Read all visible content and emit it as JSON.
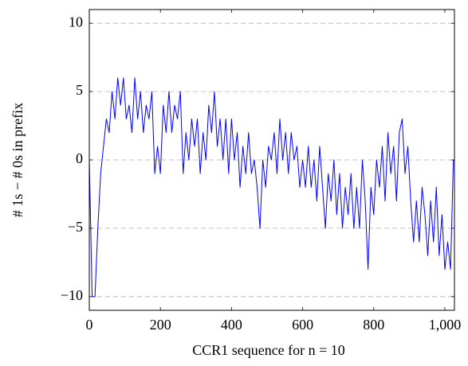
{
  "chart_data": {
    "type": "line",
    "xlabel": "CCR1 sequence for n = 10",
    "ylabel": "# 1s − # 0s in prefix",
    "x": [
      0,
      8,
      16,
      24,
      32,
      40,
      48,
      56,
      64,
      72,
      80,
      88,
      96,
      104,
      112,
      120,
      128,
      136,
      144,
      152,
      160,
      168,
      176,
      184,
      192,
      200,
      208,
      216,
      224,
      232,
      240,
      248,
      256,
      264,
      272,
      280,
      288,
      296,
      304,
      312,
      320,
      328,
      336,
      344,
      352,
      360,
      368,
      376,
      384,
      392,
      400,
      408,
      416,
      424,
      432,
      440,
      448,
      456,
      464,
      472,
      480,
      488,
      496,
      504,
      512,
      520,
      528,
      536,
      544,
      552,
      560,
      568,
      576,
      584,
      592,
      600,
      608,
      616,
      624,
      632,
      640,
      648,
      656,
      664,
      672,
      680,
      688,
      696,
      704,
      712,
      720,
      728,
      736,
      744,
      752,
      760,
      768,
      776,
      784,
      792,
      800,
      808,
      816,
      824,
      832,
      840,
      848,
      856,
      864,
      872,
      880,
      888,
      896,
      904,
      912,
      920,
      928,
      936,
      944,
      952,
      960,
      968,
      976,
      984,
      992,
      1000,
      1008,
      1016,
      1024
    ],
    "series": [
      {
        "color": "#0000ff",
        "values": [
          0,
          -10,
          -10,
          -5,
          -1,
          1,
          3,
          2,
          5,
          3,
          6,
          4,
          6,
          3,
          4,
          2,
          6,
          3,
          5,
          2,
          4,
          3,
          5,
          -1,
          1,
          -1,
          4,
          2,
          5,
          2,
          4,
          3,
          5,
          -1,
          2,
          0,
          3,
          1,
          3,
          -1,
          2,
          0,
          4,
          2,
          5,
          1,
          3,
          0,
          3,
          -1,
          3,
          0,
          2,
          -2,
          1,
          -1,
          2,
          -1,
          0,
          -2,
          -5,
          0,
          -2,
          1,
          0,
          2,
          -1,
          3,
          0,
          2,
          -1,
          2,
          0,
          1,
          -2,
          0,
          -2,
          1,
          -2,
          0,
          -3,
          1,
          -2,
          -5,
          -1,
          -3,
          0,
          -4,
          -1,
          -5,
          -2,
          -4,
          -1,
          -5,
          -2,
          -5,
          0,
          -3,
          -8,
          -2,
          -4,
          0,
          -2,
          1,
          -3,
          2,
          -1,
          1,
          -3,
          2,
          3,
          -1,
          1,
          -3,
          -6,
          -3,
          -6,
          -2,
          -4,
          -7,
          -3,
          -6,
          -2,
          -7,
          -4,
          -8,
          -6,
          -8,
          0
        ]
      }
    ],
    "xlim": [
      0,
      1027
    ],
    "ylim": [
      -11,
      11
    ],
    "xticks": [
      0,
      200,
      400,
      600,
      800,
      {
        "value": 1000,
        "label": "1,000"
      }
    ],
    "yticks": [
      {
        "value": -10,
        "label": "−10"
      },
      {
        "value": -5,
        "label": "−5"
      },
      0,
      5,
      10
    ],
    "grid": true
  }
}
